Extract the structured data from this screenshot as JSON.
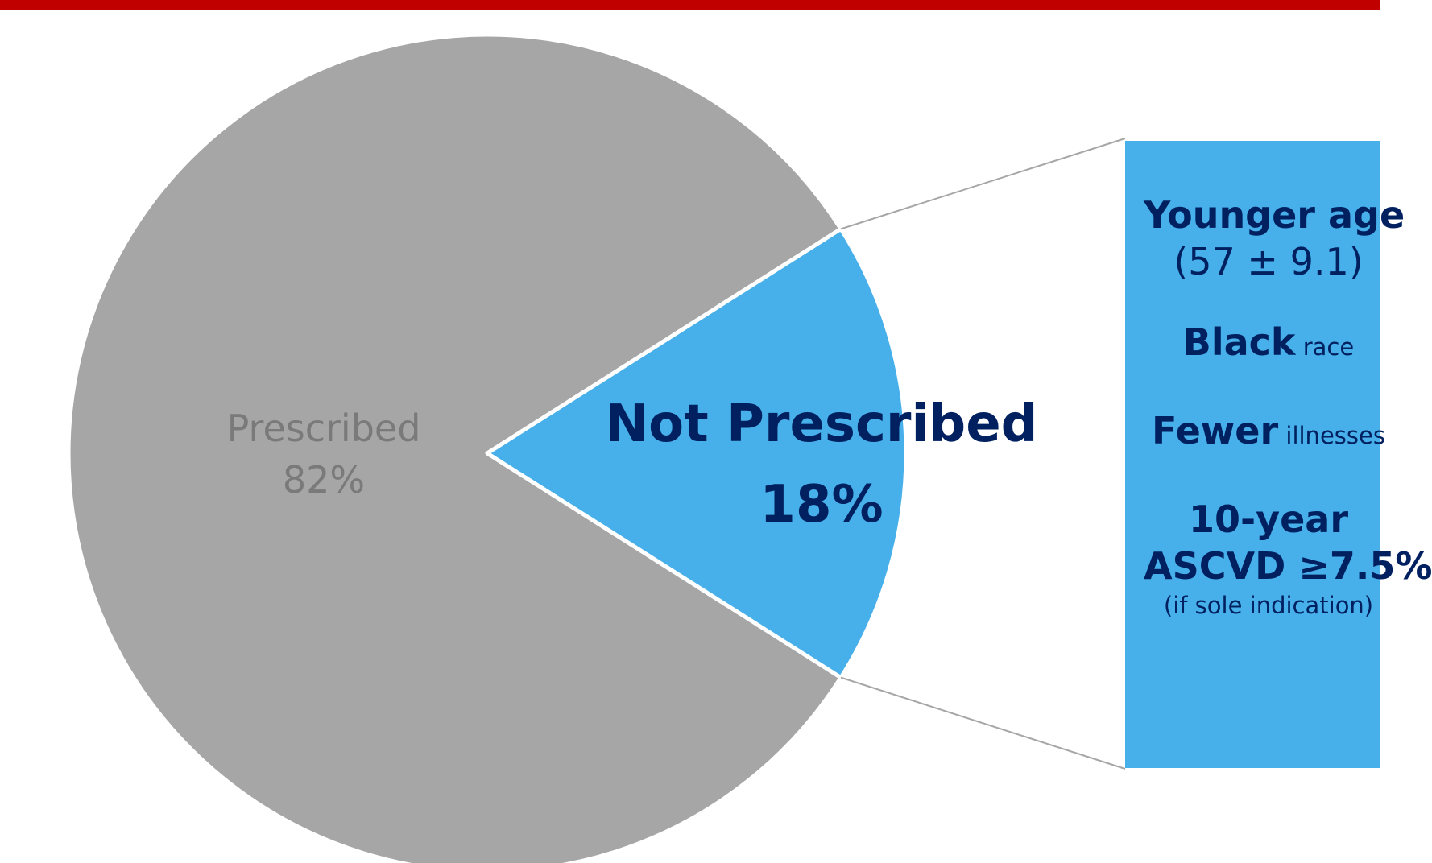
{
  "colors": {
    "top_bar": "#c00000",
    "prescribed": "#a6a6a6",
    "not_prescribed": "#47b0ea",
    "prescribed_text": "#7a7a7a",
    "not_prescribed_text": "#002060",
    "connector": "#a6a6a6"
  },
  "chart_data": {
    "type": "pie",
    "slices": [
      {
        "name": "Prescribed",
        "percent": 82,
        "label": "Prescribed",
        "value_label": "82%",
        "exploded": false
      },
      {
        "name": "Not Prescribed",
        "percent": 18,
        "label": "Not Prescribed",
        "value_label": "18%",
        "exploded": false
      }
    ],
    "callout": {
      "for_slice": "Not Prescribed",
      "items": [
        {
          "bold": "Younger age",
          "detail": "(57 ± 9.1)"
        },
        {
          "bold": "Black",
          "rest": " race"
        },
        {
          "bold": "Fewer",
          "rest": " illnesses"
        },
        {
          "bold": "10-year",
          "bold2": "ASCVD ≥7.5%",
          "note": "(if sole indication)"
        }
      ]
    }
  }
}
